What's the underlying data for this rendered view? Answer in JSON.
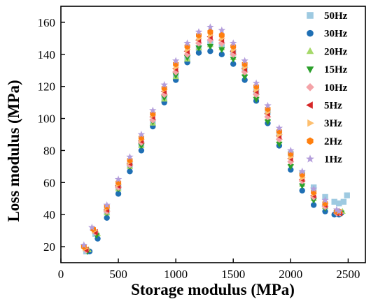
{
  "chart_data": {
    "type": "scatter",
    "title": "",
    "xlabel": "Storage modulus (MPa)",
    "ylabel": "Loss modulus (MPa)",
    "xlim": [
      0,
      2650
    ],
    "ylim": [
      10,
      170
    ],
    "xticks": [
      0,
      500,
      1000,
      1500,
      2000,
      2500
    ],
    "yticks": [
      20,
      40,
      60,
      80,
      100,
      120,
      140,
      160
    ],
    "grid": false,
    "legend_position": "top-right",
    "series": [
      {
        "name": "50Hz",
        "color": "#9ecae1",
        "marker": "square",
        "x": [
          220,
          300,
          400,
          500,
          600,
          700,
          800,
          900,
          1000,
          1100,
          1200,
          1300,
          1400,
          1500,
          1600,
          1700,
          1800,
          1900,
          2000,
          2100,
          2200,
          2300,
          2380,
          2420,
          2460,
          2490
        ],
        "y": [
          17,
          28,
          42,
          57,
          71,
          84,
          98,
          112,
          126,
          137,
          144,
          147,
          146,
          141,
          131,
          117,
          104,
          91,
          78,
          66,
          57,
          51,
          48,
          47,
          48,
          52
        ]
      },
      {
        "name": "30Hz",
        "color": "#1f6fb4",
        "marker": "circle",
        "x": [
          250,
          320,
          400,
          500,
          600,
          700,
          800,
          900,
          1000,
          1100,
          1200,
          1300,
          1400,
          1500,
          1600,
          1700,
          1800,
          1900,
          2000,
          2100,
          2200,
          2300,
          2380,
          2420,
          2440
        ],
        "y": [
          17,
          25,
          38,
          53,
          67,
          80,
          95,
          110,
          124,
          135,
          141,
          142,
          140,
          134,
          124,
          111,
          97,
          83,
          68,
          55,
          46,
          42,
          40,
          40,
          41
        ]
      },
      {
        "name": "20Hz",
        "color": "#a6d96a",
        "marker": "triangle-up",
        "x": [
          240,
          320,
          400,
          500,
          600,
          700,
          800,
          900,
          1000,
          1100,
          1200,
          1300,
          1400,
          1500,
          1600,
          1700,
          1800,
          1900,
          2000,
          2100,
          2200,
          2300,
          2400,
          2450
        ],
        "y": [
          18,
          28,
          41,
          56,
          70,
          83,
          97,
          112,
          126,
          137,
          144,
          146,
          144,
          138,
          128,
          114,
          100,
          86,
          72,
          59,
          50,
          45,
          42,
          42
        ]
      },
      {
        "name": "15Hz",
        "color": "#2ca02c",
        "marker": "triangle-down",
        "x": [
          230,
          310,
          400,
          500,
          600,
          700,
          800,
          900,
          1000,
          1100,
          1200,
          1300,
          1400,
          1500,
          1600,
          1700,
          1800,
          1900,
          2000,
          2100,
          2200,
          2300,
          2400,
          2440
        ],
        "y": [
          17,
          27,
          41,
          56,
          70,
          83,
          98,
          113,
          127,
          138,
          144,
          145,
          143,
          137,
          126,
          112,
          98,
          84,
          70,
          58,
          49,
          44,
          41,
          41
        ]
      },
      {
        "name": "10Hz",
        "color": "#f4a3a8",
        "marker": "diamond",
        "x": [
          220,
          300,
          400,
          500,
          600,
          700,
          800,
          900,
          1000,
          1100,
          1200,
          1300,
          1400,
          1500,
          1600,
          1700,
          1800,
          1900,
          2000,
          2100,
          2200,
          2300,
          2400,
          2430
        ],
        "y": [
          18,
          29,
          42,
          57,
          71,
          85,
          99,
          115,
          129,
          140,
          147,
          149,
          147,
          140,
          129,
          115,
          101,
          87,
          73,
          61,
          51,
          45,
          41,
          41
        ]
      },
      {
        "name": "5Hz",
        "color": "#d62728",
        "marker": "triangle-left",
        "x": [
          220,
          300,
          400,
          500,
          600,
          700,
          800,
          900,
          1000,
          1100,
          1200,
          1300,
          1400,
          1500,
          1600,
          1700,
          1800,
          1900,
          2000,
          2100,
          2200,
          2300,
          2400,
          2430
        ],
        "y": [
          18,
          29,
          43,
          58,
          72,
          86,
          101,
          117,
          131,
          142,
          149,
          151,
          149,
          142,
          131,
          117,
          103,
          89,
          75,
          62,
          52,
          46,
          41,
          41
        ]
      },
      {
        "name": "3Hz",
        "color": "#fdbf6f",
        "marker": "triangle-right",
        "x": [
          210,
          290,
          400,
          500,
          600,
          700,
          800,
          900,
          1000,
          1100,
          1200,
          1300,
          1400,
          1500,
          1600,
          1700,
          1800,
          1900,
          2000,
          2100,
          2200,
          2300,
          2400,
          2420
        ],
        "y": [
          19,
          30,
          44,
          59,
          73,
          87,
          102,
          118,
          132,
          143,
          150,
          152,
          150,
          143,
          132,
          118,
          104,
          90,
          76,
          63,
          53,
          47,
          42,
          42
        ]
      },
      {
        "name": "2Hz",
        "color": "#ff7f0e",
        "marker": "hexagon",
        "x": [
          200,
          280,
          400,
          500,
          600,
          700,
          800,
          900,
          1000,
          1100,
          1200,
          1300,
          1400,
          1500,
          1600,
          1700,
          1800,
          1900,
          2000,
          2100,
          2200,
          2300,
          2400,
          2420
        ],
        "y": [
          20,
          31,
          45,
          60,
          74,
          88,
          103,
          119,
          134,
          145,
          152,
          154,
          152,
          145,
          134,
          120,
          106,
          92,
          78,
          65,
          54,
          47,
          42,
          42
        ]
      },
      {
        "name": "1Hz",
        "color": "#b39ddb",
        "marker": "star",
        "x": [
          200,
          270,
          400,
          500,
          600,
          700,
          800,
          900,
          1000,
          1100,
          1200,
          1300,
          1400,
          1500,
          1600,
          1700,
          1800,
          1900,
          2000,
          2100,
          2200,
          2300,
          2400,
          2420
        ],
        "y": [
          21,
          32,
          46,
          62,
          76,
          90,
          105,
          121,
          136,
          147,
          154,
          157,
          155,
          147,
          136,
          122,
          108,
          94,
          80,
          67,
          56,
          49,
          43,
          42
        ]
      }
    ]
  }
}
